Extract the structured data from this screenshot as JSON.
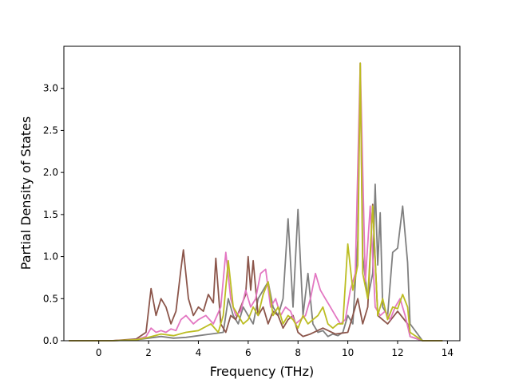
{
  "chart_data": {
    "type": "line",
    "title": "",
    "xlabel": "Frequency (THz)",
    "ylabel": "Partial Density of States",
    "xlim": [
      -1.4,
      14.5
    ],
    "ylim": [
      0,
      3.5
    ],
    "xticks": [
      0,
      2,
      4,
      6,
      8,
      10,
      12,
      14
    ],
    "xtick_labels": [
      "0",
      "2",
      "4",
      "6",
      "8",
      "10",
      "12",
      "14"
    ],
    "yticks": [
      0.0,
      0.5,
      1.0,
      1.5,
      2.0,
      2.5,
      3.0
    ],
    "ytick_labels": [
      "0.0",
      "0.5",
      "1.0",
      "1.5",
      "2.0",
      "2.5",
      "3.0"
    ],
    "grid": false,
    "legend": "none",
    "series": [
      {
        "color": "#7f7f7f",
        "x": [
          -1.2,
          0.5,
          1.5,
          2.0,
          2.5,
          3.0,
          3.5,
          4.0,
          4.5,
          5.0,
          5.2,
          5.4,
          5.6,
          5.8,
          6.0,
          6.2,
          6.4,
          6.6,
          6.8,
          7.0,
          7.2,
          7.4,
          7.6,
          7.8,
          8.0,
          8.2,
          8.4,
          8.6,
          8.8,
          9.0,
          9.2,
          9.4,
          9.6,
          9.8,
          10.0,
          10.2,
          10.4,
          10.5,
          10.6,
          10.8,
          11.0,
          11.1,
          11.2,
          11.3,
          11.4,
          11.6,
          11.8,
          12.0,
          12.2,
          12.4,
          12.5,
          13.0,
          13.8
        ],
        "y": [
          0,
          0,
          0.01,
          0.03,
          0.05,
          0.03,
          0.04,
          0.06,
          0.08,
          0.1,
          0.5,
          0.3,
          0.2,
          0.4,
          0.3,
          0.2,
          0.5,
          0.6,
          0.7,
          0.4,
          0.3,
          0.5,
          1.45,
          0.4,
          1.56,
          0.3,
          0.8,
          0.2,
          0.1,
          0.12,
          0.05,
          0.08,
          0.06,
          0.1,
          0.3,
          0.2,
          1.2,
          3.3,
          1.0,
          0.5,
          0.8,
          1.86,
          0.9,
          1.52,
          0.4,
          0.3,
          1.05,
          1.1,
          1.6,
          0.93,
          0.2,
          0,
          0
        ]
      },
      {
        "color": "#8c564b",
        "x": [
          -1.2,
          0.5,
          1.5,
          1.9,
          2.1,
          2.3,
          2.5,
          2.7,
          2.9,
          3.1,
          3.3,
          3.4,
          3.6,
          3.8,
          4.0,
          4.2,
          4.4,
          4.6,
          4.7,
          4.9,
          5.1,
          5.3,
          5.5,
          5.7,
          5.9,
          6.0,
          6.1,
          6.2,
          6.4,
          6.6,
          6.8,
          7.0,
          7.2,
          7.4,
          7.6,
          7.8,
          8.0,
          8.2,
          8.5,
          9.0,
          9.5,
          10.0,
          10.2,
          10.4,
          10.6,
          10.8,
          11.0,
          11.2,
          11.6,
          12.0,
          12.4,
          12.5,
          13.0,
          13.8
        ],
        "y": [
          0,
          0,
          0.02,
          0.1,
          0.62,
          0.3,
          0.5,
          0.4,
          0.2,
          0.35,
          0.85,
          1.08,
          0.5,
          0.3,
          0.4,
          0.35,
          0.55,
          0.45,
          0.98,
          0.2,
          0.1,
          0.3,
          0.25,
          0.4,
          0.55,
          1.0,
          0.6,
          0.95,
          0.3,
          0.4,
          0.2,
          0.35,
          0.3,
          0.15,
          0.25,
          0.3,
          0.1,
          0.05,
          0.08,
          0.15,
          0.08,
          0.1,
          0.3,
          0.5,
          0.2,
          0.4,
          1.62,
          0.3,
          0.2,
          0.35,
          0.2,
          0.05,
          0,
          0
        ]
      },
      {
        "color": "#e377c2",
        "x": [
          -1.2,
          0.5,
          1.5,
          1.9,
          2.1,
          2.3,
          2.5,
          2.7,
          2.9,
          3.1,
          3.3,
          3.5,
          3.8,
          4.0,
          4.3,
          4.6,
          4.9,
          5.1,
          5.3,
          5.5,
          5.7,
          5.9,
          6.1,
          6.3,
          6.5,
          6.7,
          6.9,
          7.1,
          7.3,
          7.5,
          7.7,
          7.9,
          8.1,
          8.3,
          8.5,
          8.7,
          8.9,
          9.1,
          9.3,
          9.5,
          9.7,
          9.9,
          10.1,
          10.3,
          10.5,
          10.7,
          10.9,
          11.1,
          11.3,
          11.5,
          11.7,
          11.9,
          12.1,
          12.3,
          12.5,
          13.0,
          13.8
        ],
        "y": [
          0,
          0,
          0.01,
          0.05,
          0.15,
          0.1,
          0.12,
          0.1,
          0.14,
          0.12,
          0.25,
          0.3,
          0.2,
          0.25,
          0.3,
          0.2,
          0.4,
          1.05,
          0.5,
          0.3,
          0.35,
          0.6,
          0.4,
          0.5,
          0.8,
          0.85,
          0.4,
          0.5,
          0.3,
          0.4,
          0.35,
          0.2,
          0.25,
          0.3,
          0.5,
          0.8,
          0.6,
          0.5,
          0.4,
          0.3,
          0.2,
          0.25,
          0.6,
          0.8,
          3.3,
          0.7,
          1.6,
          0.4,
          0.3,
          0.35,
          0.25,
          0.4,
          0.5,
          0.3,
          0.05,
          0,
          0
        ]
      },
      {
        "color": "#bcbd22",
        "x": [
          -1.2,
          0.5,
          1.5,
          2.0,
          2.5,
          3.0,
          3.5,
          4.0,
          4.5,
          4.8,
          5.0,
          5.2,
          5.4,
          5.6,
          5.8,
          6.0,
          6.2,
          6.4,
          6.6,
          6.8,
          7.0,
          7.2,
          7.4,
          7.6,
          7.8,
          8.0,
          8.2,
          8.4,
          8.6,
          8.8,
          9.0,
          9.2,
          9.4,
          9.6,
          9.8,
          10.0,
          10.2,
          10.4,
          10.5,
          10.6,
          10.8,
          11.0,
          11.2,
          11.4,
          11.6,
          11.8,
          12.0,
          12.2,
          12.4,
          12.5,
          13.0,
          13.8
        ],
        "y": [
          0,
          0,
          0.01,
          0.04,
          0.08,
          0.06,
          0.1,
          0.12,
          0.2,
          0.1,
          0.3,
          0.95,
          0.4,
          0.3,
          0.2,
          0.25,
          0.4,
          0.3,
          0.55,
          0.7,
          0.3,
          0.4,
          0.2,
          0.3,
          0.25,
          0.15,
          0.3,
          0.2,
          0.25,
          0.3,
          0.4,
          0.2,
          0.15,
          0.2,
          0.2,
          1.15,
          0.6,
          0.9,
          3.3,
          0.8,
          0.5,
          1.6,
          0.3,
          0.5,
          0.25,
          0.4,
          0.38,
          0.55,
          0.4,
          0.1,
          0,
          0
        ]
      }
    ]
  }
}
